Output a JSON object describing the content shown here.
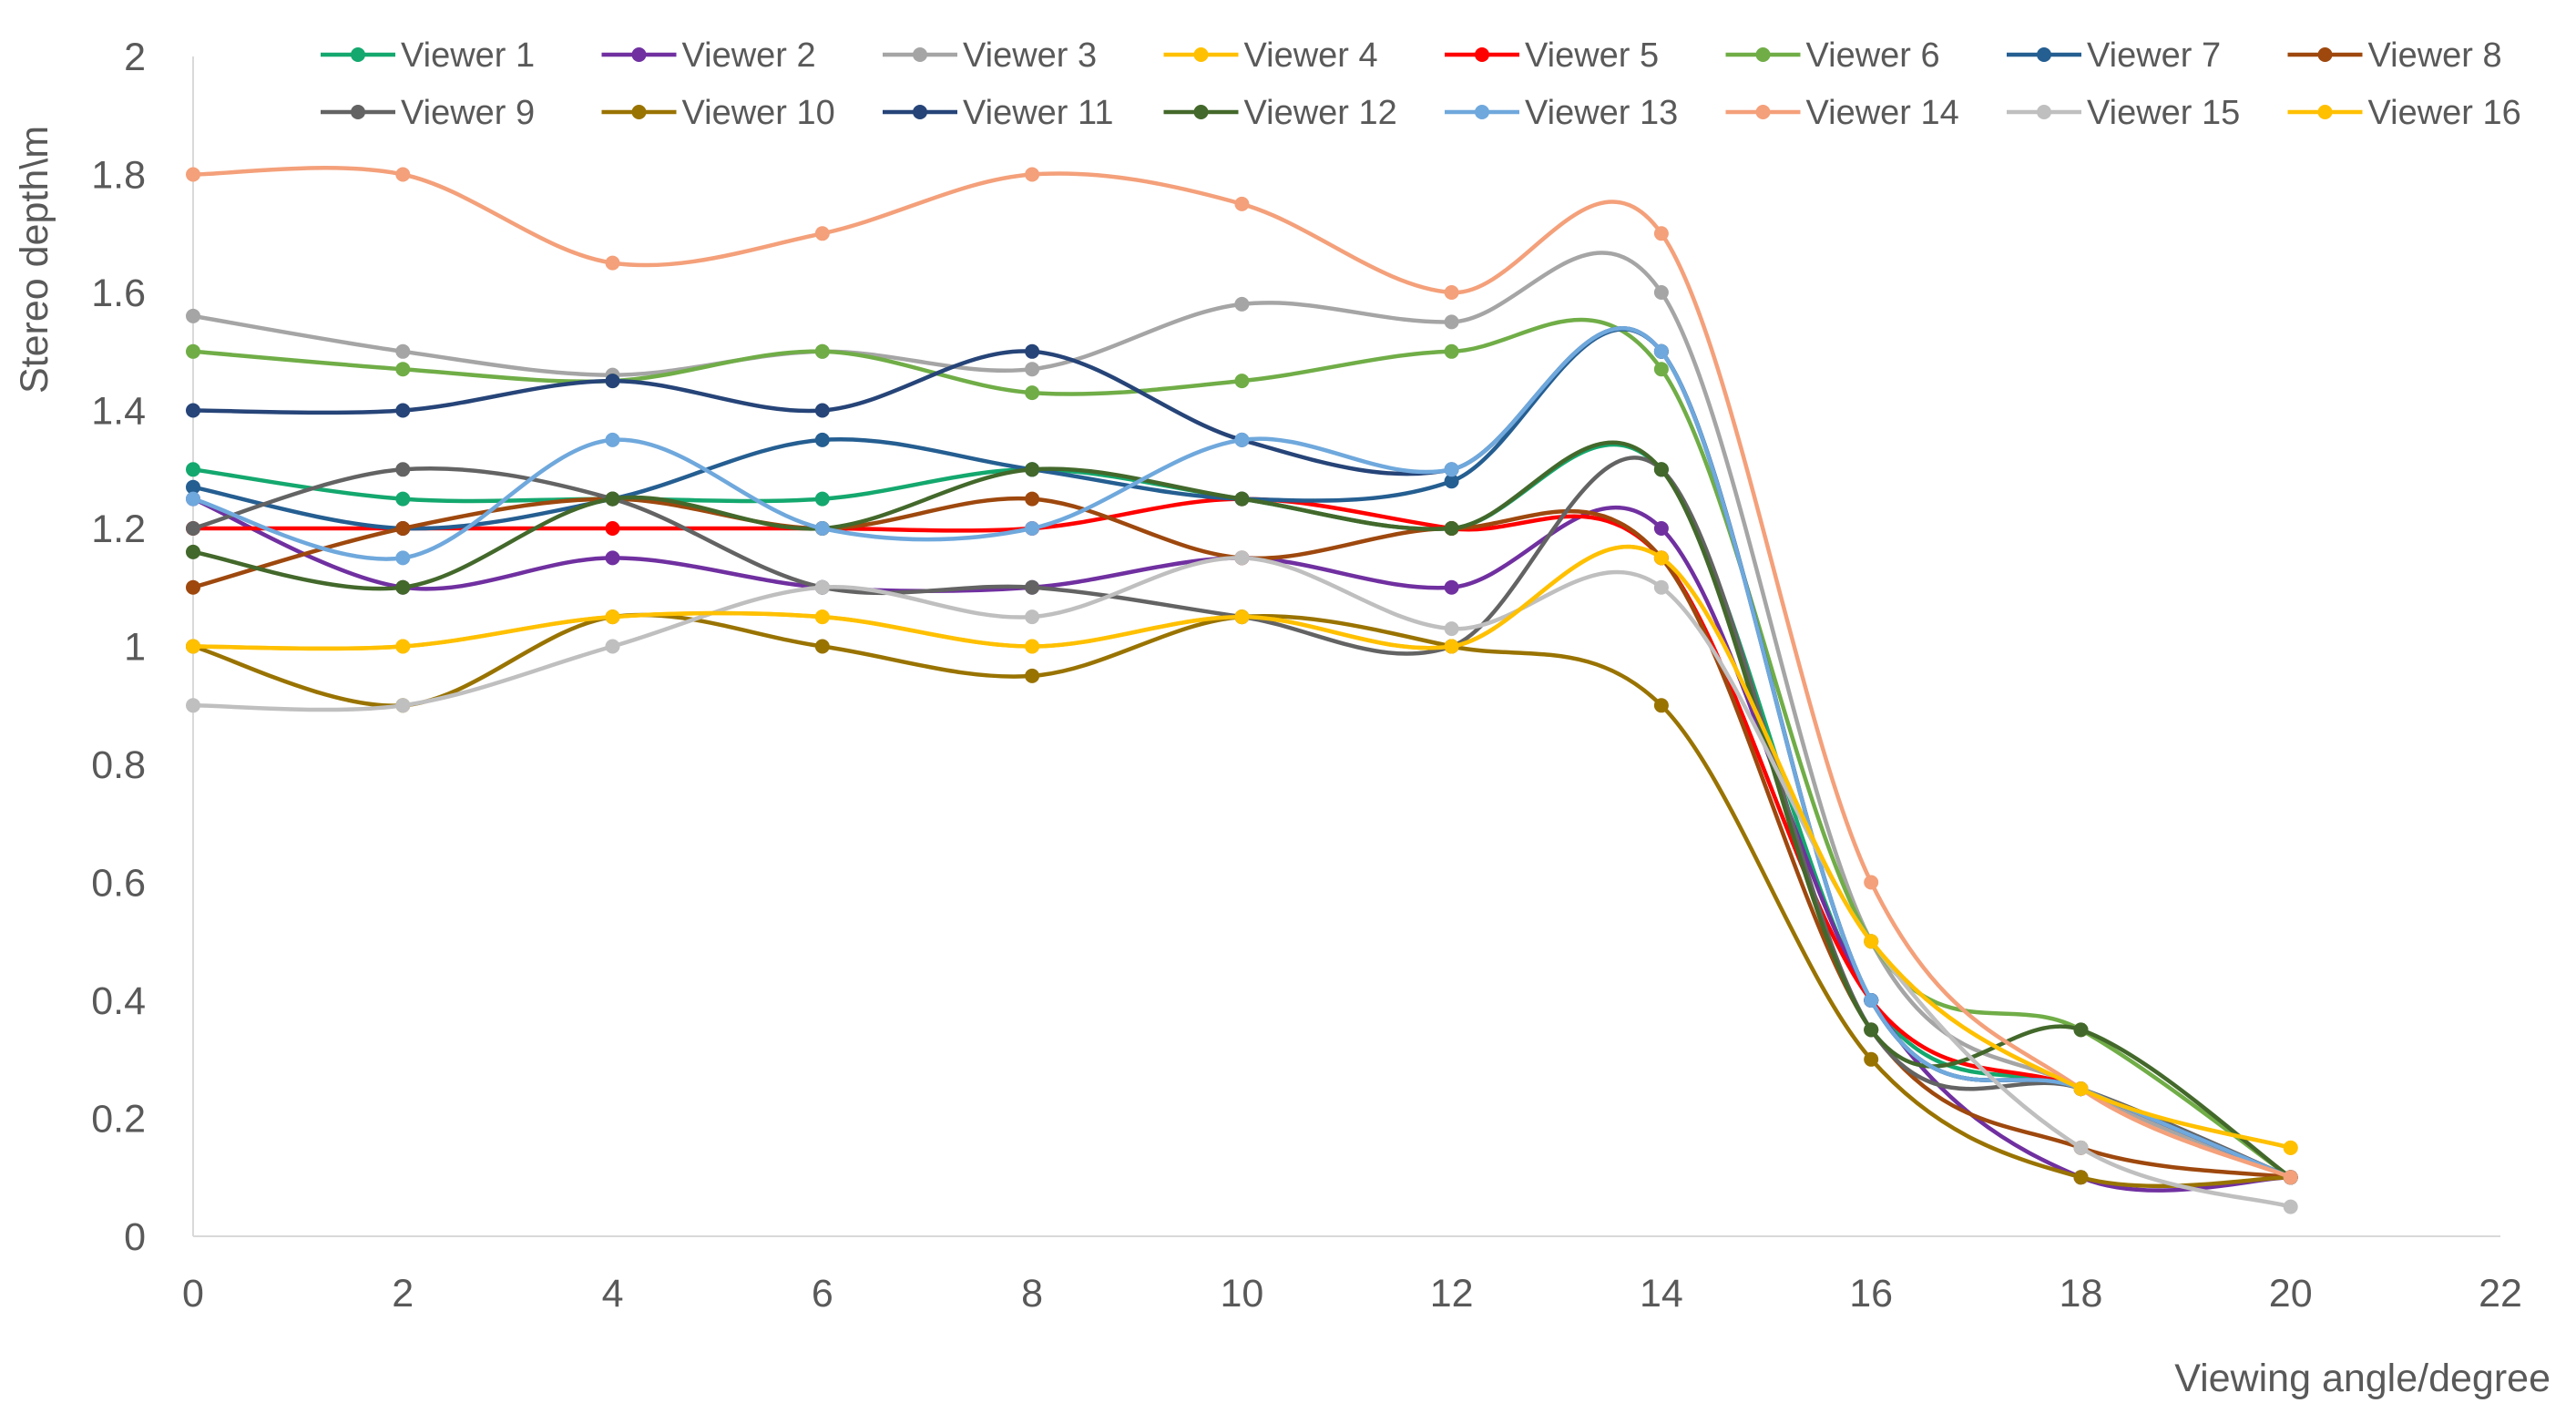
{
  "chart_data": {
    "type": "line",
    "title": "",
    "xlabel": "Viewing angle/degree",
    "ylabel": "Stereo depth\\m",
    "xlim": [
      0,
      22
    ],
    "ylim": [
      0,
      2
    ],
    "x_ticks": [
      0,
      2,
      4,
      6,
      8,
      10,
      12,
      14,
      16,
      18,
      20,
      22
    ],
    "y_ticks": [
      0,
      0.2,
      0.4,
      0.6,
      0.8,
      1,
      1.2,
      1.4,
      1.6,
      1.8,
      2
    ],
    "x_tick_labels": [
      "0",
      "2",
      "4",
      "6",
      "8",
      "10",
      "12",
      "14",
      "16",
      "18",
      "20",
      "22"
    ],
    "y_tick_labels": [
      "0",
      "0.2",
      "0.4",
      "0.6",
      "0.8",
      "1",
      "1.2",
      "1.4",
      "1.6",
      "1.8",
      "2"
    ],
    "grid": false,
    "legend_position": "top",
    "x": [
      0,
      2,
      4,
      6,
      8,
      10,
      12,
      14,
      16,
      18,
      20
    ],
    "series": [
      {
        "name": "Viewer 1",
        "color": "#14a86e",
        "values": [
          1.3,
          1.25,
          1.25,
          1.25,
          1.3,
          1.25,
          1.2,
          1.3,
          0.4,
          0.25,
          0.1
        ]
      },
      {
        "name": "Viewer 2",
        "color": "#7030a0",
        "values": [
          1.25,
          1.1,
          1.15,
          1.1,
          1.1,
          1.15,
          1.1,
          1.2,
          0.4,
          0.1,
          0.1
        ]
      },
      {
        "name": "Viewer 3",
        "color": "#a5a5a5",
        "values": [
          1.56,
          1.5,
          1.46,
          1.5,
          1.47,
          1.58,
          1.55,
          1.6,
          0.5,
          0.25,
          0.1
        ]
      },
      {
        "name": "Viewer 4",
        "color": "#ffc000",
        "values": [
          1.0,
          1.0,
          1.05,
          1.05,
          1.0,
          1.05,
          1.0,
          1.15,
          0.5,
          0.25,
          0.15
        ]
      },
      {
        "name": "Viewer 5",
        "color": "#ff0000",
        "values": [
          1.2,
          1.2,
          1.2,
          1.2,
          1.2,
          1.25,
          1.2,
          1.15,
          0.4,
          0.25,
          0.1
        ]
      },
      {
        "name": "Viewer 6",
        "color": "#70ad47",
        "values": [
          1.5,
          1.47,
          1.45,
          1.5,
          1.43,
          1.45,
          1.5,
          1.47,
          0.5,
          0.35,
          0.1
        ]
      },
      {
        "name": "Viewer 7",
        "color": "#255e91",
        "values": [
          1.27,
          1.2,
          1.25,
          1.35,
          1.3,
          1.25,
          1.28,
          1.5,
          0.4,
          0.25,
          0.1
        ]
      },
      {
        "name": "Viewer 8",
        "color": "#9e480e",
        "values": [
          1.1,
          1.2,
          1.25,
          1.2,
          1.25,
          1.15,
          1.2,
          1.15,
          0.35,
          0.15,
          0.1
        ]
      },
      {
        "name": "Viewer 9",
        "color": "#636363",
        "values": [
          1.2,
          1.3,
          1.25,
          1.1,
          1.1,
          1.05,
          1.0,
          1.3,
          0.35,
          0.25,
          0.1
        ]
      },
      {
        "name": "Viewer 10",
        "color": "#997300",
        "values": [
          1.0,
          0.9,
          1.05,
          1.0,
          0.95,
          1.05,
          1.0,
          0.9,
          0.3,
          0.1,
          0.1
        ]
      },
      {
        "name": "Viewer 11",
        "color": "#264478",
        "values": [
          1.4,
          1.4,
          1.45,
          1.4,
          1.5,
          1.35,
          1.3,
          1.5,
          0.4,
          0.25,
          0.1
        ]
      },
      {
        "name": "Viewer 12",
        "color": "#43682b",
        "values": [
          1.16,
          1.1,
          1.25,
          1.2,
          1.3,
          1.25,
          1.2,
          1.3,
          0.35,
          0.35,
          0.1
        ]
      },
      {
        "name": "Viewer 13",
        "color": "#6fa8dc",
        "values": [
          1.25,
          1.15,
          1.35,
          1.2,
          1.2,
          1.35,
          1.3,
          1.5,
          0.4,
          0.25,
          0.1
        ]
      },
      {
        "name": "Viewer 14",
        "color": "#f4a07a",
        "values": [
          1.8,
          1.8,
          1.65,
          1.7,
          1.8,
          1.75,
          1.6,
          1.7,
          0.6,
          0.25,
          0.1
        ]
      },
      {
        "name": "Viewer 15",
        "color": "#bfbfbf",
        "values": [
          0.9,
          0.9,
          1.0,
          1.1,
          1.05,
          1.15,
          1.03,
          1.1,
          0.5,
          0.15,
          0.05
        ]
      },
      {
        "name": "Viewer 16",
        "color": "#ffc000",
        "values": [
          1.0,
          1.0,
          1.05,
          1.05,
          1.0,
          1.05,
          1.0,
          1.15,
          0.5,
          0.25,
          0.15
        ]
      }
    ]
  }
}
